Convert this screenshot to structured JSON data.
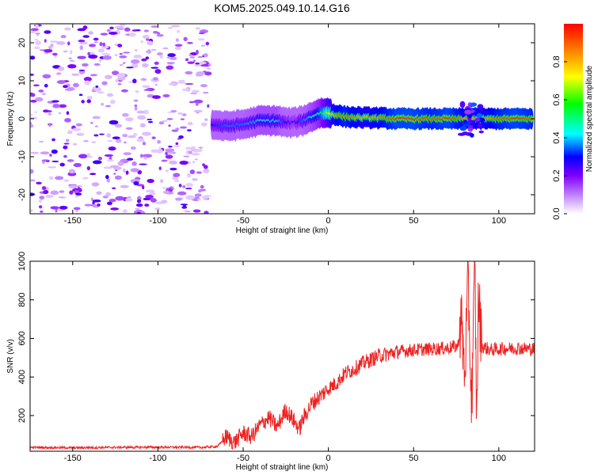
{
  "title": "KOM5.2025.049.10.14.G16",
  "chart_data": [
    {
      "type": "heatmap",
      "xlabel": "Height of straight line (km)",
      "ylabel": "Frequency (Hz)",
      "xlim": [
        -175,
        121
      ],
      "ylim": [
        -25,
        25
      ],
      "xticks": [
        -150,
        -100,
        -50,
        0,
        50,
        100
      ],
      "yticks": [
        -20,
        -10,
        0,
        10,
        20
      ],
      "colorbar": {
        "label": "Normalized spectral amplitude",
        "range": [
          0,
          1
        ],
        "ticks": [
          0.0,
          0.2,
          0.4,
          0.6,
          0.8
        ],
        "tick_labels": [
          "0.0",
          "0.2",
          "0.4",
          "0.6",
          "0.8"
        ]
      },
      "noise_region_x": [
        -175,
        -70
      ],
      "ridge": {
        "x": [
          -68,
          -60,
          -50,
          -40,
          -30,
          -25,
          -20,
          -15,
          -10,
          -5,
          0,
          5,
          10,
          20,
          30,
          40,
          50,
          60,
          70,
          80,
          90,
          100,
          110,
          120
        ],
        "frequency": [
          -1.5,
          -2,
          -1.5,
          -0.5,
          -0.5,
          -1,
          -1,
          -0.5,
          0.5,
          1.5,
          1.5,
          1,
          0.5,
          0.3,
          0.2,
          0,
          0,
          0,
          0,
          0,
          0,
          0,
          0,
          0
        ],
        "amplitude": [
          0.3,
          0.35,
          0.35,
          0.4,
          0.4,
          0.3,
          0.25,
          0.35,
          0.4,
          0.5,
          0.7,
          0.85,
          0.9,
          0.8,
          0.85,
          0.95,
          0.95,
          0.9,
          0.95,
          0.85,
          0.8,
          0.9,
          0.95,
          0.9
        ]
      },
      "disturbance": {
        "x_range": [
          78,
          90
        ],
        "freq_range": [
          -5,
          4
        ]
      }
    },
    {
      "type": "line",
      "xlabel": "Height of straight line (km)",
      "ylabel": "SNR (v/v)",
      "xlim": [
        -175,
        121
      ],
      "ylim": [
        15,
        1000
      ],
      "xticks": [
        -150,
        -100,
        -50,
        0,
        50,
        100
      ],
      "yticks": [
        200,
        400,
        600,
        800,
        1000
      ],
      "color": "#ee2222",
      "series": [
        {
          "x": [
            -175,
            -150,
            -125,
            -100,
            -75,
            -65,
            -60,
            -55,
            -50,
            -45,
            -40,
            -35,
            -30,
            -25,
            -20,
            -17,
            -15,
            -10,
            -5,
            0,
            5,
            10,
            15,
            20,
            25,
            30,
            35,
            40,
            50,
            60,
            70,
            76,
            78,
            80,
            82,
            84,
            86,
            87,
            88,
            90,
            95,
            100,
            110,
            120
          ],
          "y": [
            35,
            33,
            35,
            36,
            35,
            40,
            90,
            60,
            110,
            90,
            150,
            190,
            140,
            230,
            170,
            130,
            180,
            260,
            300,
            340,
            370,
            420,
            440,
            470,
            490,
            510,
            520,
            530,
            540,
            545,
            550,
            560,
            700,
            400,
            900,
            250,
            980,
            130,
            820,
            560,
            540,
            545,
            550,
            545
          ]
        }
      ]
    }
  ]
}
